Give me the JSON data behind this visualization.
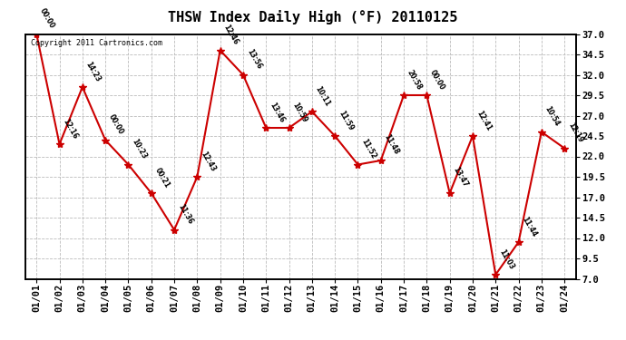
{
  "title": "THSW Index Daily High (°F) 20110125",
  "copyright": "Copyright 2011 Cartronics.com",
  "dates": [
    "01/01",
    "01/02",
    "01/03",
    "01/04",
    "01/05",
    "01/06",
    "01/07",
    "01/08",
    "01/09",
    "01/10",
    "01/11",
    "01/12",
    "01/13",
    "01/14",
    "01/15",
    "01/16",
    "01/17",
    "01/18",
    "01/19",
    "01/20",
    "01/21",
    "01/22",
    "01/23",
    "01/24"
  ],
  "values": [
    37.0,
    23.5,
    30.5,
    24.0,
    21.0,
    17.5,
    13.0,
    19.5,
    35.0,
    32.0,
    25.5,
    25.5,
    27.5,
    24.5,
    21.0,
    21.5,
    29.5,
    29.5,
    17.5,
    24.5,
    7.5,
    11.5,
    25.0,
    23.0
  ],
  "time_labels": [
    "00:00",
    "12:16",
    "14:23",
    "00:00",
    "10:23",
    "00:21",
    "11:36",
    "12:43",
    "12:46",
    "13:56",
    "13:46",
    "10:59",
    "10:11",
    "11:59",
    "11:52",
    "11:48",
    "20:58",
    "00:00",
    "13:47",
    "12:41",
    "11:03",
    "11:44",
    "10:54",
    "12:19"
  ],
  "ylim": [
    7.0,
    37.0
  ],
  "yticks": [
    7.0,
    9.5,
    12.0,
    14.5,
    17.0,
    19.5,
    22.0,
    24.5,
    27.0,
    29.5,
    32.0,
    34.5,
    37.0
  ],
  "line_color": "#cc0000",
  "marker_color": "#cc0000",
  "grid_color": "#bbbbbb",
  "background_color": "#ffffff",
  "title_fontsize": 11,
  "tick_fontsize": 7.5,
  "label_fontsize": 6.5
}
